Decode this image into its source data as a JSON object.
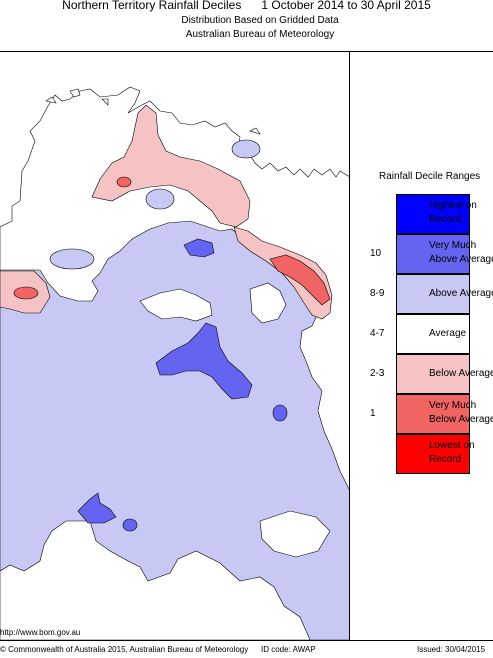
{
  "header": {
    "title": "Northern Territory Rainfall Deciles      1 October 2014 to 30 April 2015",
    "subtitle_1": "Distribution Based on Gridded Data",
    "subtitle_2": "Australian Bureau of Meteorology"
  },
  "legend": {
    "title": "Rainfall Decile Ranges",
    "items": [
      {
        "range": "",
        "label": "Highest on\nRecord",
        "color": "#0000ff"
      },
      {
        "range": "10",
        "label": "Very Much\nAbove Average",
        "color": "#6464f0"
      },
      {
        "range": "8-9",
        "label": "Above Average",
        "color": "#c8c8f5"
      },
      {
        "range": "4-7",
        "label": "Average",
        "color": "#ffffff"
      },
      {
        "range": "2-3",
        "label": "Below Average",
        "color": "#f5c3c3"
      },
      {
        "range": "1",
        "label": "Very Much\nBelow Average",
        "color": "#f06464"
      },
      {
        "range": "",
        "label": "Lowest on\nRecord",
        "color": "#ff0000"
      }
    ]
  },
  "footer": {
    "url": "http://www.bom.gov.au",
    "copyright": "© Commonwealth of Australia 2015, Australian Bureau of Meteorology",
    "id_code": "ID code: AWAP",
    "issued": "Issued: 30/04/2015"
  },
  "colors": {
    "above_average": "#c8c8f5",
    "very_much_above": "#6464f0",
    "below_average": "#f5c3c3",
    "very_much_below": "#f06464"
  }
}
